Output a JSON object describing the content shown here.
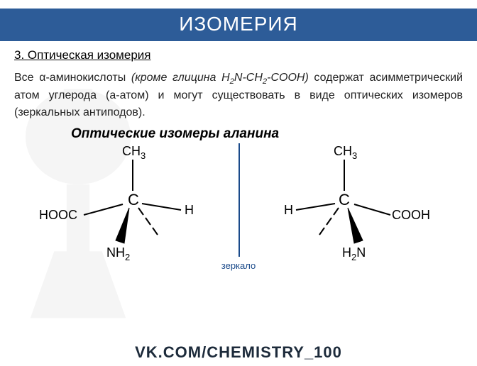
{
  "title": "ИЗОМЕРИЯ",
  "subtitle": "3. Оптическая изомерия",
  "paragraph_html": "Все α-аминокислоты <span class=\"italic\">(кроме глицина H<sub>2</sub>N-CH<sub>2</sub>-COOH)</span> содержат асимметрический атом углерода (a-атом) и могут существовать в виде оптических изомеров (зеркальных антиподов).",
  "caption": "Оптические изомеры аланина",
  "mirror_label": "зеркало",
  "footer": "VK.COM/CHEMISTRY_100",
  "mol": {
    "ch3": "CH",
    "ch3_sub": "3",
    "c": "C",
    "h": "H",
    "cooh": "COOH",
    "hooc": "HOOC",
    "nh2": "NH",
    "h2n": "H",
    "nh2_sub": "2",
    "h2n_pre": "2",
    "h2n_end": "N"
  },
  "colors": {
    "title_bg": "#2d5c98",
    "mirror": "#1a4a8a",
    "footer_text": "#1c2a3a"
  }
}
